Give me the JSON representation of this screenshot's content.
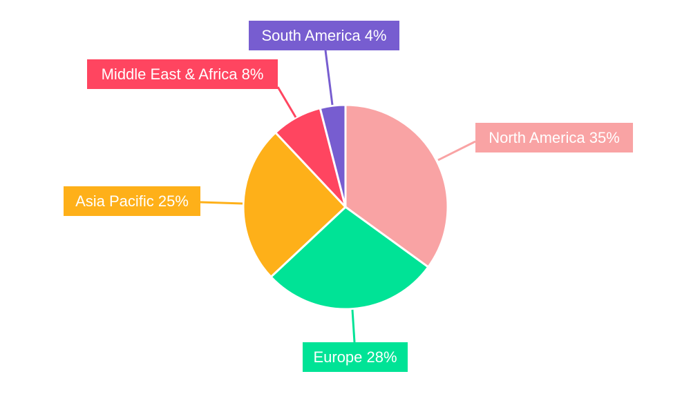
{
  "chart_data": {
    "type": "pie",
    "title": "",
    "categories": [
      "North America",
      "Europe",
      "Asia Pacific",
      "Middle East & Africa",
      "South America"
    ],
    "values": [
      35,
      28,
      25,
      8,
      4
    ],
    "unit": "%",
    "labels": [
      "North America 35%",
      "Europe 28%",
      "Asia Pacific 25%",
      "Middle East & Africa 8%",
      "South America 4%"
    ],
    "colors": [
      "#F9A3A4",
      "#00E396",
      "#FEB019",
      "#FF4560",
      "#775DD0"
    ],
    "start_angle": "top",
    "direction": "clockwise",
    "legend": "none"
  }
}
